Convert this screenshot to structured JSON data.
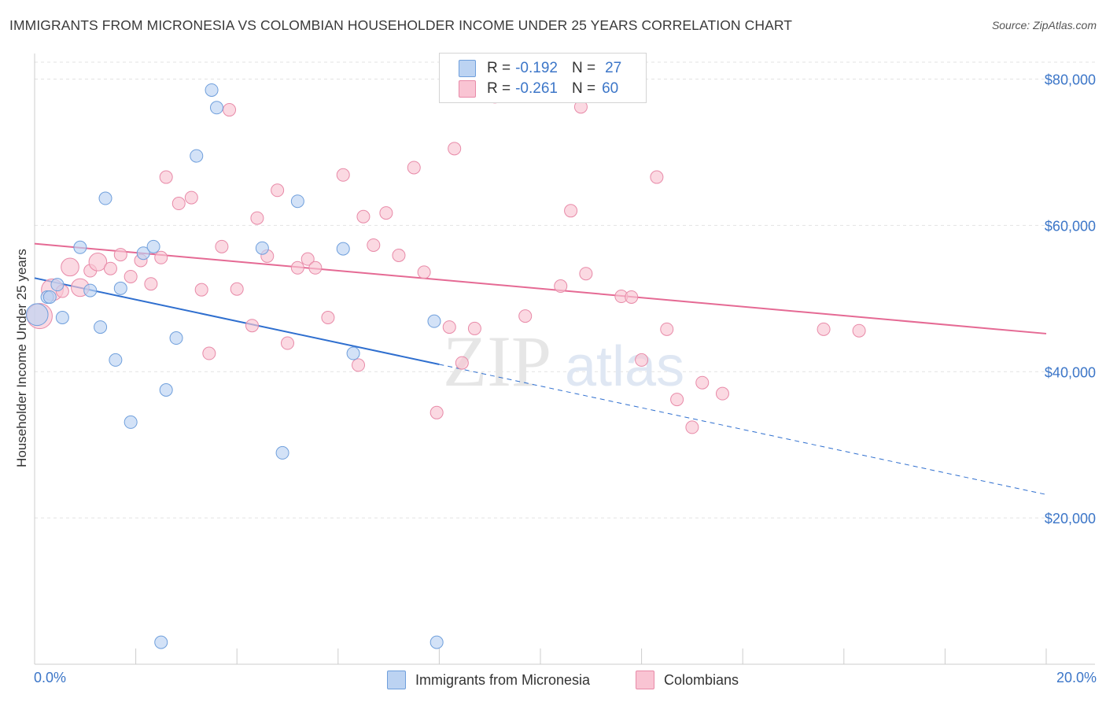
{
  "title": "IMMIGRANTS FROM MICRONESIA VS COLOMBIAN HOUSEHOLDER INCOME UNDER 25 YEARS CORRELATION CHART",
  "source": "Source: ZipAtlas.com",
  "watermark": {
    "zip": "ZIP",
    "atlas": "atlas"
  },
  "legend_top": {
    "rows": [
      {
        "r_label": "R =",
        "r_value": "-0.192",
        "n_label": "N =",
        "n_value": "27"
      },
      {
        "r_label": "R =",
        "r_value": "-0.261",
        "n_label": "N =",
        "n_value": "60"
      }
    ]
  },
  "colors": {
    "blue_fill": "#bcd3f2",
    "blue_stroke": "#6f9fdc",
    "blue_line": "#2f6fcf",
    "pink_fill": "#f9c4d3",
    "pink_stroke": "#e88aa8",
    "pink_line": "#e56a94",
    "tick_label": "#3c76c8",
    "grid": "#e3e3e3"
  },
  "chart_data": {
    "type": "scatter",
    "title": "IMMIGRANTS FROM MICRONESIA VS COLOMBIAN HOUSEHOLDER INCOME UNDER 25 YEARS CORRELATION CHART",
    "xlabel": "",
    "ylabel": "Householder Income Under 25 years",
    "xlim": [
      0,
      20
    ],
    "ylim": [
      0,
      83500
    ],
    "x_tick_labels": [
      "0.0%",
      "20.0%"
    ],
    "y_ticks": [
      20000,
      40000,
      60000,
      80000
    ],
    "y_tick_labels": [
      "$20,000",
      "$40,000",
      "$60,000",
      "$80,000"
    ],
    "grid": true,
    "series": [
      {
        "name": "Immigrants from Micronesia",
        "color": "#bcd3f2",
        "r": -0.192,
        "n": 27,
        "trend": {
          "x0": 0.0,
          "y0": 52800,
          "x1": 8.0,
          "y1": 41000,
          "dash_to_x": 20.0,
          "dash_to_y": 23200
        },
        "points": [
          [
            0.05,
            47800,
            3
          ],
          [
            0.25,
            50200,
            1
          ],
          [
            0.45,
            51900,
            1
          ],
          [
            0.55,
            47400,
            1
          ],
          [
            0.9,
            57000,
            1
          ],
          [
            1.1,
            51100,
            1
          ],
          [
            1.3,
            46100,
            1
          ],
          [
            1.4,
            63700,
            1
          ],
          [
            1.6,
            41600,
            1
          ],
          [
            1.7,
            51400,
            1
          ],
          [
            1.9,
            33100,
            1
          ],
          [
            2.15,
            56200,
            1
          ],
          [
            2.35,
            57100,
            1
          ],
          [
            2.5,
            3000,
            1
          ],
          [
            2.6,
            37500,
            1
          ],
          [
            2.8,
            44600,
            1
          ],
          [
            3.2,
            69500,
            1
          ],
          [
            3.5,
            78500,
            1
          ],
          [
            3.6,
            76100,
            1
          ],
          [
            4.5,
            56900,
            1
          ],
          [
            4.9,
            28900,
            1
          ],
          [
            5.2,
            63300,
            1
          ],
          [
            6.1,
            56800,
            1
          ],
          [
            6.3,
            42500,
            1
          ],
          [
            7.9,
            46900,
            1
          ],
          [
            7.95,
            3000,
            1
          ],
          [
            0.3,
            50200,
            1
          ]
        ]
      },
      {
        "name": "Colombians",
        "color": "#f9c4d3",
        "r": -0.261,
        "n": 60,
        "trend": {
          "x0": 0.0,
          "y0": 57500,
          "x1": 20.0,
          "y1": 45200
        },
        "points": [
          [
            0.1,
            47600,
            4
          ],
          [
            0.35,
            51200,
            3
          ],
          [
            0.7,
            54300,
            2
          ],
          [
            0.9,
            51500,
            2
          ],
          [
            1.1,
            53800,
            1
          ],
          [
            1.25,
            55000,
            2
          ],
          [
            1.5,
            54100,
            1
          ],
          [
            1.7,
            56000,
            1
          ],
          [
            1.9,
            53000,
            1
          ],
          [
            2.1,
            55200,
            1
          ],
          [
            2.3,
            52000,
            1
          ],
          [
            2.5,
            55600,
            1
          ],
          [
            2.6,
            66600,
            1
          ],
          [
            2.85,
            63000,
            1
          ],
          [
            3.1,
            63800,
            1
          ],
          [
            3.3,
            51200,
            1
          ],
          [
            3.45,
            42500,
            1
          ],
          [
            3.7,
            57100,
            1
          ],
          [
            3.85,
            75800,
            1
          ],
          [
            4.0,
            51300,
            1
          ],
          [
            4.3,
            46300,
            1
          ],
          [
            4.4,
            61000,
            1
          ],
          [
            4.6,
            55800,
            1
          ],
          [
            4.8,
            64800,
            1
          ],
          [
            5.0,
            43900,
            1
          ],
          [
            5.2,
            54200,
            1
          ],
          [
            5.4,
            55400,
            1
          ],
          [
            5.55,
            54200,
            1
          ],
          [
            5.8,
            47400,
            1
          ],
          [
            6.1,
            66900,
            1
          ],
          [
            6.4,
            40900,
            1
          ],
          [
            6.5,
            61200,
            1
          ],
          [
            6.7,
            57300,
            1
          ],
          [
            6.95,
            61700,
            1
          ],
          [
            7.2,
            55900,
            1
          ],
          [
            7.5,
            67900,
            1
          ],
          [
            7.7,
            53600,
            1
          ],
          [
            7.95,
            34400,
            1
          ],
          [
            8.2,
            46100,
            1
          ],
          [
            8.3,
            70500,
            1
          ],
          [
            8.45,
            41200,
            1
          ],
          [
            8.7,
            45900,
            1
          ],
          [
            9.1,
            77600,
            1
          ],
          [
            9.7,
            47600,
            1
          ],
          [
            10.4,
            51700,
            1
          ],
          [
            10.6,
            62000,
            1
          ],
          [
            10.8,
            76200,
            1
          ],
          [
            10.9,
            53400,
            1
          ],
          [
            11.6,
            50300,
            1
          ],
          [
            11.8,
            50200,
            1
          ],
          [
            12.0,
            41600,
            1
          ],
          [
            12.3,
            66600,
            1
          ],
          [
            12.5,
            45800,
            1
          ],
          [
            12.7,
            36200,
            1
          ],
          [
            13.0,
            32400,
            1
          ],
          [
            13.2,
            38500,
            1
          ],
          [
            13.6,
            37000,
            1
          ],
          [
            15.6,
            45800,
            1
          ],
          [
            16.3,
            45600,
            1
          ],
          [
            0.55,
            51000,
            1
          ]
        ]
      }
    ]
  },
  "bottom_legend": [
    {
      "label": "Immigrants from Micronesia"
    },
    {
      "label": "Colombians"
    }
  ]
}
